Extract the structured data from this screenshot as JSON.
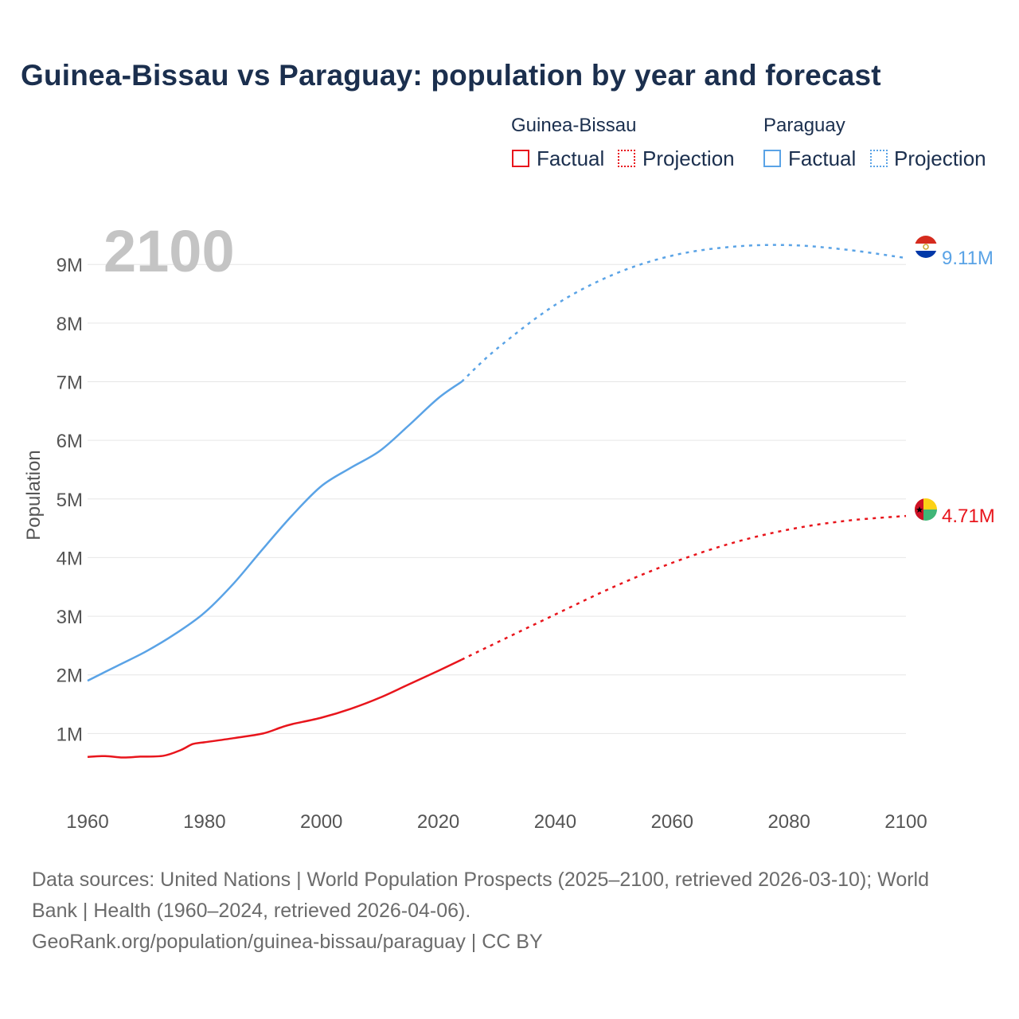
{
  "title": "Guinea-Bissau vs Paraguay: population by year and forecast",
  "legend": {
    "groups": [
      {
        "name": "Guinea-Bissau",
        "factual_label": "Factual",
        "projection_label": "Projection",
        "color": "#e8151c"
      },
      {
        "name": "Paraguay",
        "factual_label": "Factual",
        "projection_label": "Projection",
        "color": "#5aa3e6"
      }
    ]
  },
  "footer": {
    "line1": "Data sources: United Nations | World Population Prospects (2025–2100, retrieved 2026-03-10); World",
    "line2": "Bank | Health (1960–2024, retrieved 2026-04-06).",
    "line3": "GeoRank.org/population/guinea-bissau/paraguay | CC BY"
  },
  "chart_data": {
    "type": "line",
    "title": "Guinea-Bissau vs Paraguay: population by year and forecast",
    "xlabel": "",
    "ylabel": "Population",
    "year_watermark": "2100",
    "xlim": [
      1960,
      2100
    ],
    "ylim": [
      0,
      9600000
    ],
    "x_ticks": [
      1960,
      1980,
      2000,
      2020,
      2040,
      2060,
      2080,
      2100
    ],
    "y_ticks": [
      1000000,
      2000000,
      3000000,
      4000000,
      5000000,
      6000000,
      7000000,
      8000000,
      9000000
    ],
    "y_tick_labels": [
      "1M",
      "2M",
      "3M",
      "4M",
      "5M",
      "6M",
      "7M",
      "8M",
      "9M"
    ],
    "grid": true,
    "projection_start_year": 2024,
    "series": [
      {
        "name": "Guinea-Bissau",
        "color": "#e8151c",
        "end_label": "4.71M",
        "flag": "guinea-bissau-flag",
        "points": [
          [
            1960,
            600000
          ],
          [
            1963,
            615000
          ],
          [
            1966,
            590000
          ],
          [
            1969,
            605000
          ],
          [
            1973,
            620000
          ],
          [
            1976,
            720000
          ],
          [
            1978,
            820000
          ],
          [
            1980,
            850000
          ],
          [
            1985,
            920000
          ],
          [
            1990,
            1000000
          ],
          [
            1993,
            1100000
          ],
          [
            1995,
            1160000
          ],
          [
            2000,
            1270000
          ],
          [
            2005,
            1420000
          ],
          [
            2010,
            1610000
          ],
          [
            2015,
            1840000
          ],
          [
            2020,
            2070000
          ],
          [
            2024,
            2260000
          ],
          [
            2030,
            2550000
          ],
          [
            2040,
            3030000
          ],
          [
            2050,
            3500000
          ],
          [
            2060,
            3910000
          ],
          [
            2070,
            4240000
          ],
          [
            2080,
            4480000
          ],
          [
            2090,
            4630000
          ],
          [
            2100,
            4710000
          ]
        ]
      },
      {
        "name": "Paraguay",
        "color": "#5aa3e6",
        "end_label": "9.11M",
        "flag": "paraguay-flag",
        "points": [
          [
            1960,
            1900000
          ],
          [
            1965,
            2150000
          ],
          [
            1970,
            2400000
          ],
          [
            1975,
            2700000
          ],
          [
            1980,
            3060000
          ],
          [
            1985,
            3560000
          ],
          [
            1990,
            4150000
          ],
          [
            1995,
            4720000
          ],
          [
            2000,
            5220000
          ],
          [
            2005,
            5530000
          ],
          [
            2010,
            5820000
          ],
          [
            2015,
            6260000
          ],
          [
            2020,
            6720000
          ],
          [
            2024,
            7000000
          ],
          [
            2030,
            7560000
          ],
          [
            2040,
            8310000
          ],
          [
            2050,
            8830000
          ],
          [
            2060,
            9150000
          ],
          [
            2070,
            9300000
          ],
          [
            2080,
            9330000
          ],
          [
            2090,
            9250000
          ],
          [
            2100,
            9110000
          ]
        ]
      }
    ]
  }
}
